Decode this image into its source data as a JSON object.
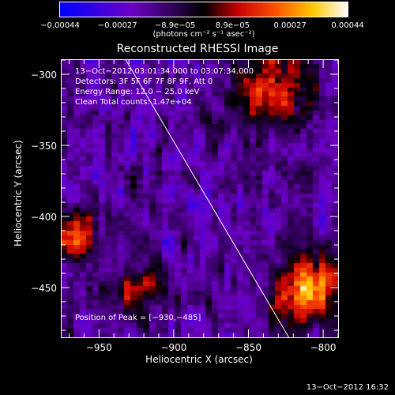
{
  "chart_data": {
    "type": "heatmap",
    "title": "Reconstructed RHESSI Image",
    "xlabel": "Heliocentric X (arcsec)",
    "ylabel": "Heliocentric Y (arcsec)",
    "xlim": [
      -975,
      -790
    ],
    "ylim": [
      -485,
      -290
    ],
    "xticks": [
      -950,
      -900,
      -850,
      -800
    ],
    "yticks": [
      -300,
      -350,
      -400,
      -450
    ],
    "xtick_labels": [
      "−950",
      "−900",
      "−850",
      "−800"
    ],
    "ytick_labels": [
      "−300",
      "−350",
      "−400",
      "−450"
    ],
    "colorbar": {
      "range": [
        -0.00044,
        0.00044
      ],
      "tick_labels": [
        "−0.00044",
        "−0.00027",
        "−8.9e−05",
        "8.9e−05",
        "0.00027",
        "0.00044"
      ],
      "units_text": "(photons cm⁻² s⁻¹ asec⁻²)"
    },
    "annotations": {
      "time_range": "13−Oct−2012 03:01:34.000 to 03:07:34.000",
      "detectors": "Detectors: 3F 5F 6F 7F 8F 9F, Att 0",
      "energy": "Energy Range: 12.0 − 25.0 keV",
      "method": "Clean      Total counts: 1.47e+04",
      "peak": "Position of Peak = [−930,−485]"
    },
    "limb_line": [
      [
        -932,
        -290
      ],
      [
        -823,
        -485
      ]
    ],
    "grid": false
  },
  "timestamp": "13−Oct−2012 16:32",
  "colors": {
    "line": "#ffffff",
    "background": "#000000"
  }
}
